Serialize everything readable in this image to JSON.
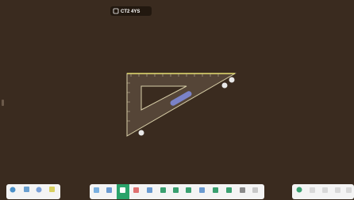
{
  "badge": {
    "label": "CT2 4YS"
  }
}
